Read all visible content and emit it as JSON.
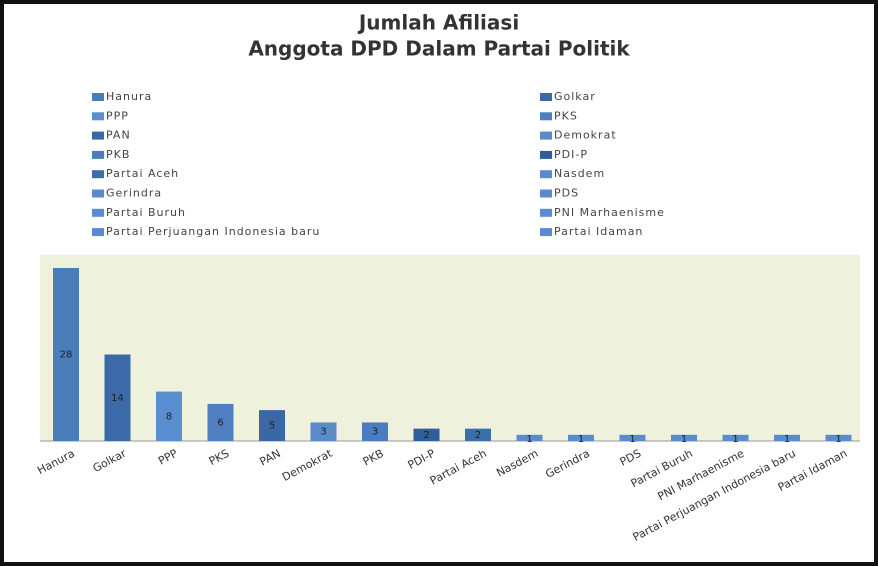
{
  "chart_data": {
    "type": "bar",
    "title": [
      "Jumlah Afiliasi",
      "Anggota DPD Dalam Partai Politik"
    ],
    "categories": [
      "Hanura",
      "Golkar",
      "PPP",
      "PKS",
      "PAN",
      "Demokrat",
      "PKB",
      "PDI-P",
      "Partai Aceh",
      "Nasdem",
      "Gerindra",
      "PDS",
      "Partai Buruh",
      "PNI Marhaenisme",
      "Partai Perjuangan Indonesia baru",
      "Partai Idaman"
    ],
    "values": [
      28,
      14,
      8,
      6,
      5,
      3,
      3,
      2,
      2,
      1,
      1,
      1,
      1,
      1,
      1,
      1
    ],
    "colors": [
      "#4a7ebb",
      "#3c6aa8",
      "#5b8ed0",
      "#4f7fc0",
      "#3a68a4",
      "#5a8ac8",
      "#4a7cc0",
      "#2f5f99",
      "#3b6fa8",
      "#5a8bd0",
      "#5a8bd0",
      "#5a8bd0",
      "#5a8bd0",
      "#5a8bd0",
      "#5a8bd0",
      "#5a8bd0"
    ]
  }
}
